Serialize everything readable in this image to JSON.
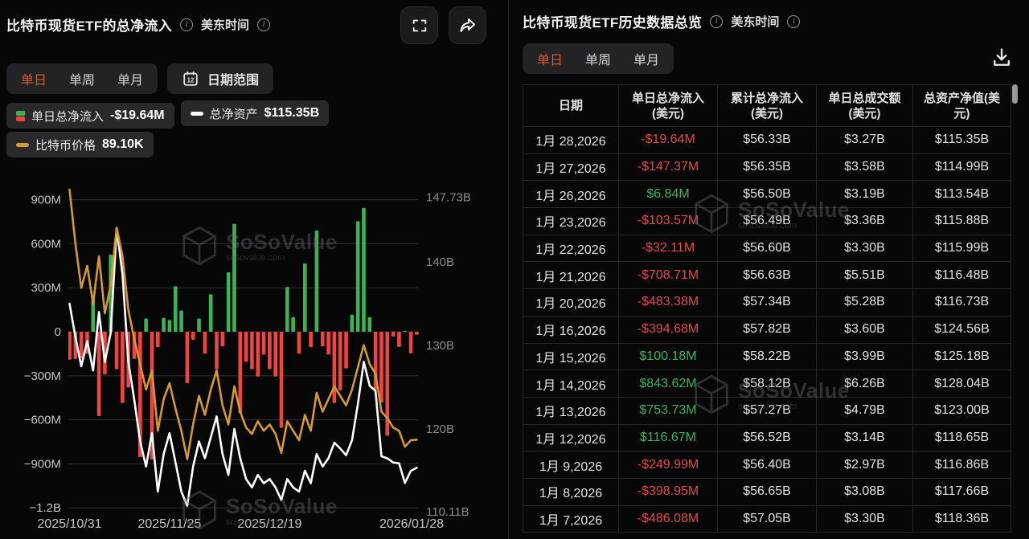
{
  "brand": {
    "name": "SoSoValue",
    "domain": "sosovalue.com"
  },
  "colors": {
    "accent_orange": "#e0562e",
    "bar_green": "#3cb454",
    "bar_red": "#ef4540",
    "text_green": "#2fb566",
    "text_red": "#e5484d",
    "line_white": "#ffffff",
    "line_orange": "#d59a2f",
    "grid": "#2e2e30",
    "panel_bg": "#070708",
    "pill_bg": "#29292b",
    "tab_bg": "#232325"
  },
  "left_panel": {
    "title": "比特币现货ETF的总净流入",
    "timezone_label": "美东时间",
    "tabs": [
      "单日",
      "单周",
      "单月"
    ],
    "active_tab": "单日",
    "date_range_label": "日期范围",
    "calendar_icon_day": "12",
    "legends": [
      {
        "icon": "bar-green-red",
        "label": "单日总净流入",
        "value": "-$19.64M"
      },
      {
        "icon": "white-dash",
        "label": "总净资产",
        "value": "$115.35B"
      },
      {
        "icon": "orange-dash",
        "label": "比特币价格",
        "value": "89.10K"
      }
    ]
  },
  "chart_data": {
    "type": "bar",
    "title": "比特币现货ETF的总净流入",
    "left_axis": {
      "unit": "USD",
      "ticks": [
        {
          "label": "900M",
          "value": 900
        },
        {
          "label": "600M",
          "value": 600
        },
        {
          "label": "300M",
          "value": 300
        },
        {
          "label": "0",
          "value": 0
        },
        {
          "label": "−300M",
          "value": -300
        },
        {
          "label": "−600M",
          "value": -600
        },
        {
          "label": "−900M",
          "value": -900
        },
        {
          "label": "−1.2B",
          "value": -1200
        }
      ],
      "range": [
        -1200,
        900
      ]
    },
    "right_axis": {
      "unit": "USD",
      "ticks": [
        {
          "label": "147.73B",
          "value": 147.73
        },
        {
          "label": "140B",
          "value": 140
        },
        {
          "label": "130B",
          "value": 130
        },
        {
          "label": "120B",
          "value": 120
        },
        {
          "label": "110.11B",
          "value": 110.11
        }
      ],
      "range": [
        110.11,
        147.73
      ]
    },
    "x_tick_indices": [
      0,
      17,
      34,
      59
    ],
    "x_tick_labels": [
      "2025/10/31",
      "2025/11/25",
      "2025/12/19",
      "2026/01/28"
    ],
    "dates": [
      "2025/10/31",
      "2025/11/03",
      "2025/11/04",
      "2025/11/05",
      "2025/11/06",
      "2025/11/07",
      "2025/11/10",
      "2025/11/11",
      "2025/11/12",
      "2025/11/13",
      "2025/11/14",
      "2025/11/17",
      "2025/11/18",
      "2025/11/19",
      "2025/11/20",
      "2025/11/21",
      "2025/11/24",
      "2025/11/25",
      "2025/11/26",
      "2025/11/28",
      "2025/12/01",
      "2025/12/02",
      "2025/12/03",
      "2025/12/04",
      "2025/12/05",
      "2025/12/08",
      "2025/12/09",
      "2025/12/10",
      "2025/12/11",
      "2025/12/12",
      "2025/12/15",
      "2025/12/16",
      "2025/12/17",
      "2025/12/18",
      "2025/12/19",
      "2025/12/22",
      "2025/12/23",
      "2025/12/24",
      "2025/12/26",
      "2025/12/29",
      "2025/12/30",
      "2025/12/31",
      "2026/01/02",
      "2026/01/05",
      "2026/01/06",
      "2026/01/07",
      "2026/01/08",
      "2026/01/09",
      "2026/01/12",
      "2026/01/13",
      "2026/01/14",
      "2026/01/15",
      "2026/01/16",
      "2026/01/20",
      "2026/01/21",
      "2026/01/22",
      "2026/01/23",
      "2026/01/26",
      "2026/01/27",
      "2026/01/28"
    ],
    "series": [
      {
        "name": "单日总净流入",
        "type": "bar",
        "unit": "M USD",
        "values": [
          -190,
          -185,
          -180,
          -150,
          235,
          -575,
          -290,
          525,
          -255,
          -485,
          -380,
          -185,
          -855,
          90,
          -870,
          -105,
          95,
          80,
          310,
          145,
          -350,
          -55,
          90,
          -150,
          255,
          -255,
          -100,
          405,
          735,
          -555,
          -205,
          -255,
          -305,
          -155,
          -255,
          -305,
          -655,
          305,
          100,
          -150,
          465,
          -105,
          690,
          -100,
          -155,
          -486.08,
          -398.95,
          -249.99,
          116.67,
          753.73,
          843.62,
          100.18,
          -394.68,
          -483.38,
          -708.71,
          -32.11,
          -103.57,
          6.84,
          -147.37,
          -19.64
        ]
      },
      {
        "name": "总净资产",
        "type": "line",
        "color_key": "line_white",
        "unit": "B USD",
        "values": [
          135.0,
          131.0,
          127.5,
          130.5,
          127.0,
          134.0,
          128.0,
          131.5,
          144.0,
          138.5,
          128.0,
          123.5,
          118.5,
          115.5,
          119.5,
          112.5,
          117.0,
          119.5,
          116.0,
          112.5,
          110.8,
          115.5,
          118.5,
          116.5,
          119.0,
          121.5,
          117.0,
          114.5,
          120.0,
          116.5,
          114.0,
          113.0,
          114.5,
          113.5,
          114.0,
          113.0,
          111.5,
          114.0,
          113.0,
          112.5,
          115.0,
          113.5,
          117.0,
          115.5,
          116.5,
          118.36,
          117.66,
          116.86,
          118.65,
          123.0,
          128.04,
          125.18,
          124.56,
          116.73,
          116.48,
          115.99,
          115.88,
          113.54,
          114.99,
          115.35
        ]
      },
      {
        "name": "比特币价格",
        "type": "line",
        "color_key": "line_orange",
        "unit": "K USD",
        "values": [
          128.5,
          120.0,
          113.0,
          116.5,
          110.5,
          118.0,
          109.0,
          113.5,
          122.5,
          118.0,
          109.5,
          105.0,
          101.0,
          97.0,
          100.0,
          90.5,
          95.5,
          98.0,
          94.0,
          90.5,
          86.0,
          91.5,
          96.0,
          93.0,
          97.0,
          100.0,
          94.5,
          91.5,
          97.5,
          93.5,
          91.0,
          90.0,
          92.0,
          90.5,
          91.5,
          90.0,
          87.0,
          92.0,
          90.5,
          89.0,
          93.0,
          90.5,
          96.5,
          93.5,
          95.5,
          97.5,
          96.0,
          94.5,
          97.0,
          100.5,
          104.0,
          101.0,
          99.5,
          93.5,
          92.5,
          91.0,
          90.5,
          88.0,
          89.0,
          89.1
        ]
      }
    ],
    "legend_position": "top-left",
    "grid": true
  },
  "right_panel": {
    "title": "比特币现货ETF历史数据总览",
    "timezone_label": "美东时间",
    "tabs": [
      "单日",
      "单周",
      "单月"
    ],
    "active_tab": "单日",
    "table": {
      "columns": [
        {
          "line1": "日期",
          "line2": ""
        },
        {
          "line1": "单日总净流入",
          "line2": "(美元)"
        },
        {
          "line1": "累计总净流入",
          "line2": "(美元)"
        },
        {
          "line1": "单日总成交额",
          "line2": "(美元)"
        },
        {
          "line1": "总资产净值(美",
          "line2": "元)"
        }
      ],
      "rows": [
        {
          "date": "1月 28,2026",
          "daily_netflow": "-$19.64M",
          "flow_sign": "neg",
          "cum_netflow": "$56.33B",
          "daily_volume": "$3.27B",
          "total_nav": "$115.35B"
        },
        {
          "date": "1月 27,2026",
          "daily_netflow": "-$147.37M",
          "flow_sign": "neg",
          "cum_netflow": "$56.35B",
          "daily_volume": "$3.58B",
          "total_nav": "$114.99B"
        },
        {
          "date": "1月 26,2026",
          "daily_netflow": "$6.84M",
          "flow_sign": "pos",
          "cum_netflow": "$56.50B",
          "daily_volume": "$3.19B",
          "total_nav": "$113.54B"
        },
        {
          "date": "1月 23,2026",
          "daily_netflow": "-$103.57M",
          "flow_sign": "neg",
          "cum_netflow": "$56.49B",
          "daily_volume": "$3.36B",
          "total_nav": "$115.88B"
        },
        {
          "date": "1月 22,2026",
          "daily_netflow": "-$32.11M",
          "flow_sign": "neg",
          "cum_netflow": "$56.60B",
          "daily_volume": "$3.30B",
          "total_nav": "$115.99B"
        },
        {
          "date": "1月 21,2026",
          "daily_netflow": "-$708.71M",
          "flow_sign": "neg",
          "cum_netflow": "$56.63B",
          "daily_volume": "$5.51B",
          "total_nav": "$116.48B"
        },
        {
          "date": "1月 20,2026",
          "daily_netflow": "-$483.38M",
          "flow_sign": "neg",
          "cum_netflow": "$57.34B",
          "daily_volume": "$5.28B",
          "total_nav": "$116.73B"
        },
        {
          "date": "1月 16,2026",
          "daily_netflow": "-$394.68M",
          "flow_sign": "neg",
          "cum_netflow": "$57.82B",
          "daily_volume": "$3.60B",
          "total_nav": "$124.56B"
        },
        {
          "date": "1月 15,2026",
          "daily_netflow": "$100.18M",
          "flow_sign": "pos",
          "cum_netflow": "$58.22B",
          "daily_volume": "$3.99B",
          "total_nav": "$125.18B"
        },
        {
          "date": "1月 14,2026",
          "daily_netflow": "$843.62M",
          "flow_sign": "pos",
          "cum_netflow": "$58.12B",
          "daily_volume": "$6.26B",
          "total_nav": "$128.04B"
        },
        {
          "date": "1月 13,2026",
          "daily_netflow": "$753.73M",
          "flow_sign": "pos",
          "cum_netflow": "$57.27B",
          "daily_volume": "$4.79B",
          "total_nav": "$123.00B"
        },
        {
          "date": "1月 12,2026",
          "daily_netflow": "$116.67M",
          "flow_sign": "pos",
          "cum_netflow": "$56.52B",
          "daily_volume": "$3.14B",
          "total_nav": "$118.65B"
        },
        {
          "date": "1月 9,2026",
          "daily_netflow": "-$249.99M",
          "flow_sign": "neg",
          "cum_netflow": "$56.40B",
          "daily_volume": "$2.97B",
          "total_nav": "$116.86B"
        },
        {
          "date": "1月 8,2026",
          "daily_netflow": "-$398.95M",
          "flow_sign": "neg",
          "cum_netflow": "$56.65B",
          "daily_volume": "$3.08B",
          "total_nav": "$117.66B"
        },
        {
          "date": "1月 7,2026",
          "daily_netflow": "-$486.08M",
          "flow_sign": "neg",
          "cum_netflow": "$57.05B",
          "daily_volume": "$3.30B",
          "total_nav": "$118.36B"
        }
      ]
    }
  }
}
